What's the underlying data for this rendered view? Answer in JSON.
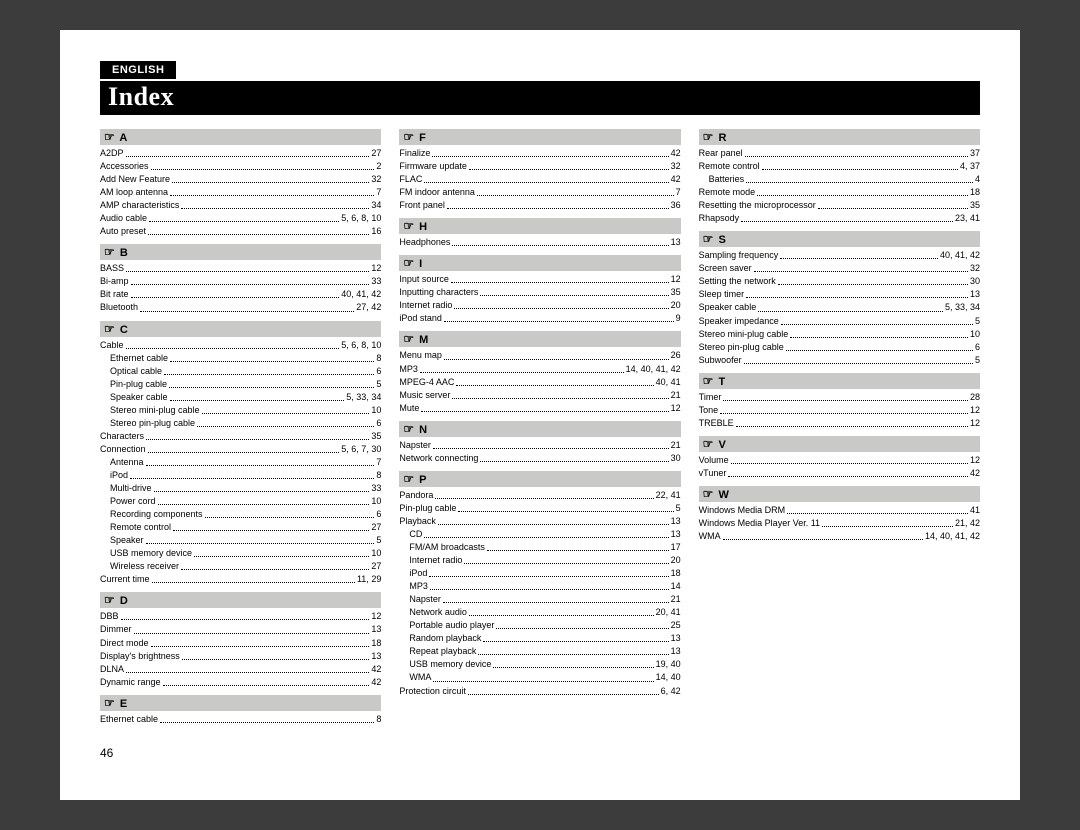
{
  "language_tab": "ENGLISH",
  "title": "Index",
  "page_number": "46",
  "columns": [
    [
      {
        "letter": "A",
        "entries": [
          {
            "t": "A2DP",
            "p": "27",
            "i": 0
          },
          {
            "t": "Accessories",
            "p": "2",
            "i": 0
          },
          {
            "t": "Add New Feature",
            "p": "32",
            "i": 0
          },
          {
            "t": "AM loop antenna",
            "p": "7",
            "i": 0
          },
          {
            "t": "AMP characteristics",
            "p": "34",
            "i": 0
          },
          {
            "t": "Audio cable",
            "p": "5, 6, 8, 10",
            "i": 0
          },
          {
            "t": "Auto preset",
            "p": "16",
            "i": 0
          }
        ]
      },
      {
        "letter": "B",
        "entries": [
          {
            "t": "BASS",
            "p": "12",
            "i": 0
          },
          {
            "t": "Bi-amp",
            "p": "33",
            "i": 0
          },
          {
            "t": "Bit rate",
            "p": "40, 41, 42",
            "i": 0
          },
          {
            "t": "Bluetooth",
            "p": "27, 42",
            "i": 0
          }
        ]
      },
      {
        "letter": "C",
        "entries": [
          {
            "t": "Cable",
            "p": "5, 6, 8, 10",
            "i": 0
          },
          {
            "t": "Ethernet cable",
            "p": "8",
            "i": 1
          },
          {
            "t": "Optical cable",
            "p": "6",
            "i": 1
          },
          {
            "t": "Pin-plug cable",
            "p": "5",
            "i": 1
          },
          {
            "t": "Speaker cable",
            "p": "5, 33, 34",
            "i": 1
          },
          {
            "t": "Stereo mini-plug cable",
            "p": "10",
            "i": 1
          },
          {
            "t": "Stereo pin-plug cable",
            "p": "6",
            "i": 1
          },
          {
            "t": "Characters",
            "p": "35",
            "i": 0
          },
          {
            "t": "Connection",
            "p": "5, 6, 7, 30",
            "i": 0
          },
          {
            "t": "Antenna",
            "p": "7",
            "i": 1
          },
          {
            "t": "iPod",
            "p": "8",
            "i": 1
          },
          {
            "t": "Multi-drive",
            "p": "33",
            "i": 1
          },
          {
            "t": "Power cord",
            "p": "10",
            "i": 1
          },
          {
            "t": "Recording components",
            "p": "6",
            "i": 1
          },
          {
            "t": "Remote control",
            "p": "27",
            "i": 1
          },
          {
            "t": "Speaker",
            "p": "5",
            "i": 1
          },
          {
            "t": "USB memory device",
            "p": "10",
            "i": 1
          },
          {
            "t": "Wireless receiver",
            "p": "27",
            "i": 1
          },
          {
            "t": "Current time",
            "p": "11, 29",
            "i": 0
          }
        ]
      },
      {
        "letter": "D",
        "entries": [
          {
            "t": "DBB",
            "p": "12",
            "i": 0
          },
          {
            "t": "Dimmer",
            "p": "13",
            "i": 0
          },
          {
            "t": "Direct mode",
            "p": "18",
            "i": 0
          },
          {
            "t": "Display's brightness",
            "p": "13",
            "i": 0
          },
          {
            "t": "DLNA",
            "p": "42",
            "i": 0
          },
          {
            "t": "Dynamic range",
            "p": "42",
            "i": 0
          }
        ]
      },
      {
        "letter": "E",
        "entries": [
          {
            "t": "Ethernet cable",
            "p": "8",
            "i": 0
          }
        ]
      }
    ],
    [
      {
        "letter": "F",
        "entries": [
          {
            "t": "Finalize",
            "p": "42",
            "i": 0
          },
          {
            "t": "Firmware update",
            "p": "32",
            "i": 0
          },
          {
            "t": "FLAC",
            "p": "42",
            "i": 0
          },
          {
            "t": "FM indoor antenna",
            "p": "7",
            "i": 0
          },
          {
            "t": "Front panel",
            "p": "36",
            "i": 0
          }
        ]
      },
      {
        "letter": "H",
        "entries": [
          {
            "t": "Headphones",
            "p": "13",
            "i": 0
          }
        ]
      },
      {
        "letter": "I",
        "entries": [
          {
            "t": "Input source",
            "p": "12",
            "i": 0
          },
          {
            "t": "Inputting characters",
            "p": "35",
            "i": 0
          },
          {
            "t": "Internet radio",
            "p": "20",
            "i": 0
          },
          {
            "t": "iPod stand",
            "p": "9",
            "i": 0
          }
        ]
      },
      {
        "letter": "M",
        "entries": [
          {
            "t": "Menu map",
            "p": "26",
            "i": 0
          },
          {
            "t": "MP3",
            "p": "14, 40, 41, 42",
            "i": 0
          },
          {
            "t": "MPEG-4 AAC",
            "p": "40, 41",
            "i": 0
          },
          {
            "t": "Music server",
            "p": "21",
            "i": 0
          },
          {
            "t": "Mute",
            "p": "12",
            "i": 0
          }
        ]
      },
      {
        "letter": "N",
        "entries": [
          {
            "t": "Napster",
            "p": "21",
            "i": 0
          },
          {
            "t": "Network connecting",
            "p": "30",
            "i": 0
          }
        ]
      },
      {
        "letter": "P",
        "entries": [
          {
            "t": "Pandora",
            "p": "22, 41",
            "i": 0
          },
          {
            "t": "Pin-plug cable",
            "p": "5",
            "i": 0
          },
          {
            "t": "Playback",
            "p": "13",
            "i": 0
          },
          {
            "t": "CD",
            "p": "13",
            "i": 1
          },
          {
            "t": "FM/AM broadcasts",
            "p": "17",
            "i": 1
          },
          {
            "t": "Internet radio",
            "p": "20",
            "i": 1
          },
          {
            "t": "iPod",
            "p": "18",
            "i": 1
          },
          {
            "t": "MP3",
            "p": "14",
            "i": 1
          },
          {
            "t": "Napster",
            "p": "21",
            "i": 1
          },
          {
            "t": "Network audio",
            "p": "20, 41",
            "i": 1
          },
          {
            "t": "Portable audio player",
            "p": "25",
            "i": 1
          },
          {
            "t": "Random playback",
            "p": "13",
            "i": 1
          },
          {
            "t": "Repeat playback",
            "p": "13",
            "i": 1
          },
          {
            "t": "USB memory device",
            "p": "19, 40",
            "i": 1
          },
          {
            "t": "WMA",
            "p": "14, 40",
            "i": 1
          },
          {
            "t": "Protection circuit",
            "p": "6, 42",
            "i": 0
          }
        ]
      }
    ],
    [
      {
        "letter": "R",
        "entries": [
          {
            "t": "Rear panel",
            "p": "37",
            "i": 0
          },
          {
            "t": "Remote control",
            "p": "4, 37",
            "i": 0
          },
          {
            "t": "Batteries",
            "p": "4",
            "i": 1
          },
          {
            "t": "Remote mode",
            "p": "18",
            "i": 0
          },
          {
            "t": "Resetting the microprocessor",
            "p": "35",
            "i": 0
          },
          {
            "t": "Rhapsody",
            "p": "23, 41",
            "i": 0
          }
        ]
      },
      {
        "letter": "S",
        "entries": [
          {
            "t": "Sampling frequency",
            "p": "40, 41, 42",
            "i": 0
          },
          {
            "t": "Screen saver",
            "p": "32",
            "i": 0
          },
          {
            "t": "Setting the network",
            "p": "30",
            "i": 0
          },
          {
            "t": "Sleep timer",
            "p": "13",
            "i": 0
          },
          {
            "t": "Speaker cable",
            "p": "5, 33, 34",
            "i": 0
          },
          {
            "t": "Speaker impedance",
            "p": "5",
            "i": 0
          },
          {
            "t": "Stereo mini-plug cable",
            "p": "10",
            "i": 0
          },
          {
            "t": "Stereo pin-plug cable",
            "p": "6",
            "i": 0
          },
          {
            "t": "Subwoofer",
            "p": "5",
            "i": 0
          }
        ]
      },
      {
        "letter": "T",
        "entries": [
          {
            "t": "Timer",
            "p": "28",
            "i": 0
          },
          {
            "t": "Tone",
            "p": "12",
            "i": 0
          },
          {
            "t": "TREBLE",
            "p": "12",
            "i": 0
          }
        ]
      },
      {
        "letter": "V",
        "entries": [
          {
            "t": "Volume",
            "p": "12",
            "i": 0
          },
          {
            "t": "vTuner",
            "p": "42",
            "i": 0
          }
        ]
      },
      {
        "letter": "W",
        "entries": [
          {
            "t": "Windows Media DRM",
            "p": "41",
            "i": 0
          },
          {
            "t": "Windows Media Player Ver. 11",
            "p": "21, 42",
            "i": 0
          },
          {
            "t": "WMA",
            "p": "14, 40, 41, 42",
            "i": 0
          }
        ]
      }
    ]
  ]
}
